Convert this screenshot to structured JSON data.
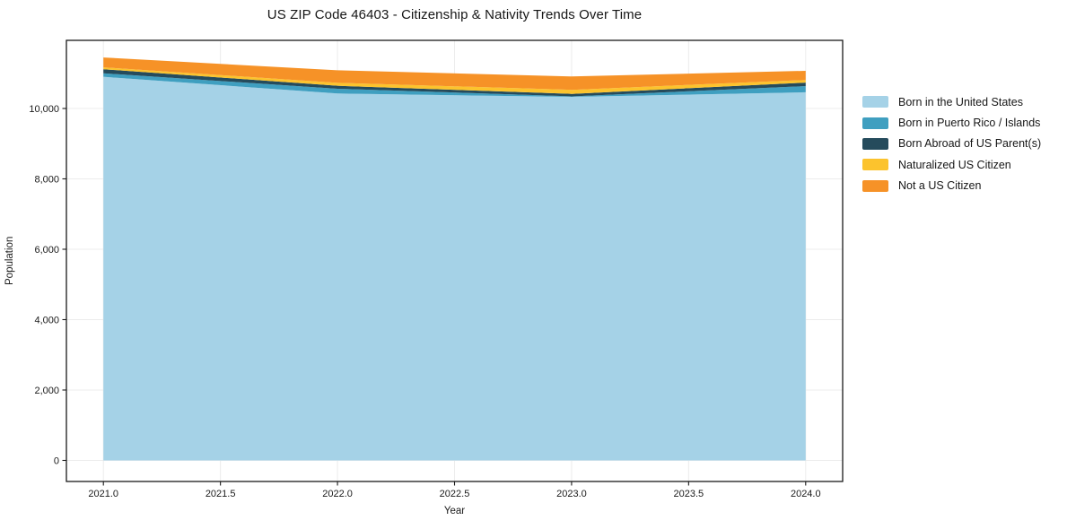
{
  "chart_data": {
    "type": "area",
    "stacked": true,
    "title": "US ZIP Code 46403 - Citizenship & Nativity Trends Over Time",
    "xlabel": "Year",
    "ylabel": "Population",
    "x": [
      2021,
      2022,
      2023,
      2024
    ],
    "series": [
      {
        "name": "Born in the United States",
        "color": "#a5d2e7",
        "values": [
          10900,
          10425,
          10330,
          10460
        ]
      },
      {
        "name": "Born in Puerto Rico / Islands",
        "color": "#3f9fc0",
        "values": [
          100,
          135,
          15,
          175
        ]
      },
      {
        "name": "Born Abroad of US Parent(s)",
        "color": "#254b5c",
        "values": [
          115,
          85,
          70,
          100
        ]
      },
      {
        "name": "Naturalized US Citizen",
        "color": "#fcc32d",
        "values": [
          55,
          85,
          115,
          75
        ]
      },
      {
        "name": "Not a US Citizen",
        "color": "#f69227",
        "values": [
          280,
          355,
          380,
          260
        ]
      }
    ],
    "totals": [
      11450,
      11085,
      10910,
      11070
    ],
    "xticks": {
      "values": [
        2021.0,
        2021.5,
        2022.0,
        2022.5,
        2023.0,
        2023.5,
        2024.0
      ],
      "labels": [
        "2021.0",
        "2021.5",
        "2022.0",
        "2022.5",
        "2023.0",
        "2023.5",
        "2024.0"
      ]
    },
    "yticks": {
      "values": [
        0,
        2000,
        4000,
        6000,
        8000,
        10000
      ],
      "labels": [
        "0",
        "2,000",
        "4,000",
        "6,000",
        "8,000",
        "10,000"
      ]
    },
    "xlim": [
      2020.842,
      2024.158
    ],
    "ylim": [
      -599,
      11936
    ],
    "grid": true,
    "grid_color": "#ececec",
    "frame_color": "#1a1a1a",
    "legend_position": "right"
  }
}
